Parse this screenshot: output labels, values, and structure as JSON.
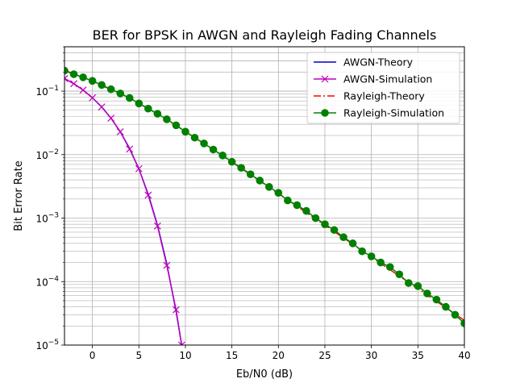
{
  "chart_data": {
    "type": "line",
    "title": "BER for BPSK in AWGN and Rayleigh Fading Channels",
    "xlabel": "Eb/N0 (dB)",
    "ylabel": "Bit Error Rate",
    "xlim": [
      -3,
      40
    ],
    "ylim": [
      1e-05,
      0.5
    ],
    "yscale": "log",
    "grid": true,
    "legend_position": "top-right",
    "x_ticks": [
      0,
      5,
      10,
      15,
      20,
      25,
      30,
      35,
      40
    ],
    "x_tick_labels": [
      "0",
      "5",
      "10",
      "15",
      "20",
      "25",
      "30",
      "35",
      "40"
    ],
    "y_ticks": [
      1e-05,
      0.0001,
      0.001,
      0.01,
      0.1
    ],
    "y_tick_labels": [
      {
        "base": "10",
        "exp": "−5"
      },
      {
        "base": "10",
        "exp": "−4"
      },
      {
        "base": "10",
        "exp": "−3"
      },
      {
        "base": "10",
        "exp": "−2"
      },
      {
        "base": "10",
        "exp": "−1"
      }
    ],
    "series": [
      {
        "name": "AWGN-Theory",
        "color": "#0000cc",
        "style": "solid",
        "marker": "none",
        "x": [
          -3,
          -2,
          -1,
          0,
          1,
          2,
          3,
          4,
          5,
          6,
          7,
          8,
          9,
          9.6
        ],
        "y": [
          0.158,
          0.131,
          0.104,
          0.0786,
          0.0563,
          0.0375,
          0.0229,
          0.0125,
          0.00595,
          0.00239,
          0.000773,
          0.000191,
          3.36e-05,
          1e-05
        ]
      },
      {
        "name": "AWGN-Simulation",
        "color": "#bf00bf",
        "style": "solid",
        "marker": "x",
        "x": [
          -3,
          -2,
          -1,
          0,
          1,
          2,
          3,
          4,
          5,
          6,
          7,
          8,
          9,
          9.6
        ],
        "y": [
          0.158,
          0.131,
          0.104,
          0.0786,
          0.0563,
          0.0375,
          0.0229,
          0.0122,
          0.006,
          0.0023,
          0.00075,
          0.00018,
          3.6e-05,
          1e-05
        ]
      },
      {
        "name": "Rayleigh-Theory",
        "color": "#ff0000",
        "style": "dashdot",
        "marker": "none",
        "x": [
          -3,
          -2,
          -1,
          0,
          1,
          2,
          3,
          4,
          5,
          6,
          7,
          8,
          9,
          10,
          11,
          12,
          13,
          14,
          15,
          16,
          17,
          18,
          19,
          20,
          21,
          22,
          23,
          24,
          25,
          26,
          27,
          28,
          29,
          30,
          31,
          32,
          33,
          34,
          35,
          36,
          37,
          38,
          39,
          40
        ],
        "y": [
          0.2135,
          0.1872,
          0.1629,
          0.1464,
          0.1217,
          0.1064,
          0.0913,
          0.0776,
          0.0642,
          0.053,
          0.0437,
          0.0355,
          0.0287,
          0.0231,
          0.0186,
          0.0149,
          0.0119,
          0.00952,
          0.0076,
          0.00606,
          0.00483,
          0.00385,
          0.00306,
          0.00243,
          0.00194,
          0.00154,
          0.00122,
          0.000973,
          0.000773,
          0.000614,
          0.000488,
          0.000388,
          0.000308,
          0.000245,
          0.000194,
          0.000154,
          0.000123,
          9.75e-05,
          7.75e-05,
          6.15e-05,
          4.89e-05,
          3.88e-05,
          3.08e-05,
          2.45e-05
        ]
      },
      {
        "name": "Rayleigh-Simulation",
        "color": "#008000",
        "style": "solid",
        "marker": "o",
        "x": [
          -3,
          -2,
          -1,
          0,
          1,
          2,
          3,
          4,
          5,
          6,
          7,
          8,
          9,
          10,
          11,
          12,
          13,
          14,
          15,
          16,
          17,
          18,
          19,
          20,
          21,
          22,
          23,
          24,
          25,
          26,
          27,
          28,
          29,
          30,
          31,
          32,
          33,
          34,
          35,
          36,
          37,
          38,
          39,
          40
        ],
        "y": [
          0.21,
          0.185,
          0.165,
          0.145,
          0.125,
          0.107,
          0.092,
          0.078,
          0.064,
          0.053,
          0.044,
          0.036,
          0.029,
          0.023,
          0.0185,
          0.015,
          0.012,
          0.0097,
          0.0077,
          0.0062,
          0.0049,
          0.0039,
          0.0031,
          0.0025,
          0.0019,
          0.0016,
          0.0013,
          0.001,
          0.0008,
          0.00065,
          0.0005,
          0.0004,
          0.0003,
          0.00025,
          0.0002,
          0.00017,
          0.00013,
          9.5e-05,
          8.5e-05,
          6.5e-05,
          5.2e-05,
          4e-05,
          3e-05,
          2.2e-05
        ]
      }
    ]
  }
}
